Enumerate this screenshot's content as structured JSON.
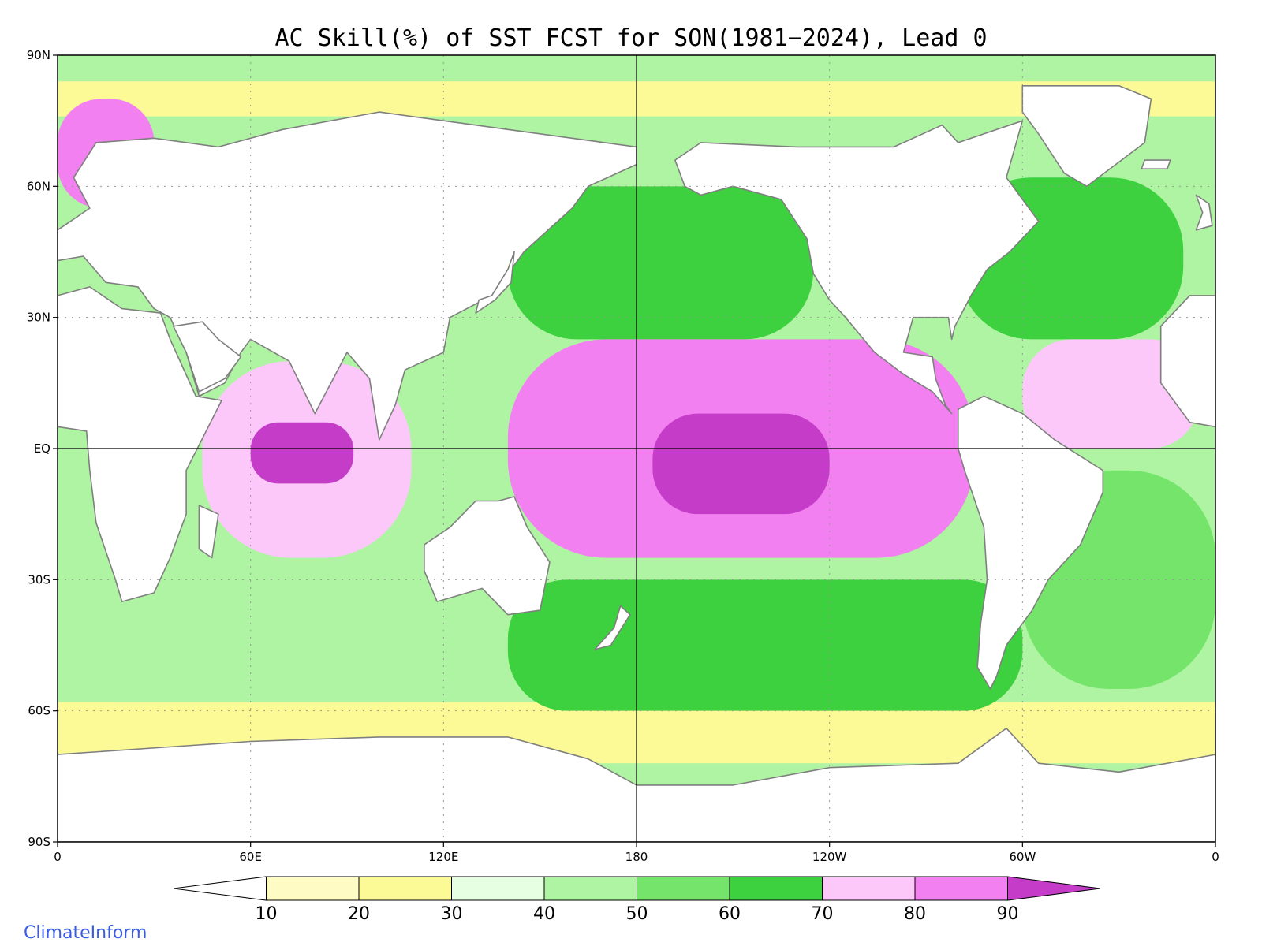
{
  "title": "AC Skill(%) of SST FCST for SON(1981−2024), Lead 0",
  "credit": "ClimateInform",
  "map": {
    "projection": "equirectangular",
    "lon_range": [
      0,
      360
    ],
    "lat_range": [
      -90,
      90
    ],
    "gridlines": "dotted",
    "reference_lines": [
      "Equator",
      "180"
    ],
    "land_fill": "#ffffff",
    "coastline_color": "#7f7f7f",
    "y_ticks": [
      {
        "lat": 90,
        "label": "90N"
      },
      {
        "lat": 60,
        "label": "60N"
      },
      {
        "lat": 30,
        "label": "30N"
      },
      {
        "lat": 0,
        "label": "EQ"
      },
      {
        "lat": -30,
        "label": "30S"
      },
      {
        "lat": -60,
        "label": "60S"
      },
      {
        "lat": -90,
        "label": "90S"
      }
    ],
    "x_ticks": [
      {
        "lon": 0,
        "label": "0"
      },
      {
        "lon": 60,
        "label": "60E"
      },
      {
        "lon": 120,
        "label": "120E"
      },
      {
        "lon": 180,
        "label": "180"
      },
      {
        "lon": 240,
        "label": "120W"
      },
      {
        "lon": 300,
        "label": "60W"
      },
      {
        "lon": 360,
        "label": "0"
      }
    ]
  },
  "legend": {
    "ticks": [
      "10",
      "20",
      "30",
      "40",
      "50",
      "60",
      "70",
      "80",
      "90"
    ],
    "under_color": "#ffffff",
    "over_color": "#c43cc8",
    "bins": [
      {
        "range": [
          10,
          20
        ],
        "color": "#fffbc4"
      },
      {
        "range": [
          20,
          30
        ],
        "color": "#fcfa96"
      },
      {
        "range": [
          30,
          40
        ],
        "color": "#e6ffe2"
      },
      {
        "range": [
          40,
          50
        ],
        "color": "#aef4a2"
      },
      {
        "range": [
          50,
          60
        ],
        "color": "#74e56a"
      },
      {
        "range": [
          60,
          70
        ],
        "color": "#3dd03f"
      },
      {
        "range": [
          70,
          80
        ],
        "color": "#fcc8fa"
      },
      {
        "range": [
          80,
          90
        ],
        "color": "#f280f0"
      }
    ]
  },
  "skill_regions": [
    {
      "name": "arctic-yellow-band",
      "lon": [
        0,
        360
      ],
      "lat": [
        76,
        84
      ],
      "value": 25
    },
    {
      "name": "southern-ocean-band",
      "lon": [
        0,
        360
      ],
      "lat": [
        -72,
        -58
      ],
      "value": 25
    },
    {
      "name": "south-indian-midlat",
      "lon": [
        0,
        120
      ],
      "lat": [
        -58,
        -30
      ],
      "value": 45
    },
    {
      "name": "south-pacific-midlat",
      "lon": [
        140,
        300
      ],
      "lat": [
        -60,
        -30
      ],
      "value": 62
    },
    {
      "name": "south-atlantic",
      "lon": [
        300,
        360
      ],
      "lat": [
        -55,
        -5
      ],
      "value": 58
    },
    {
      "name": "north-pacific",
      "lon": [
        140,
        235
      ],
      "lat": [
        25,
        60
      ],
      "value": 65
    },
    {
      "name": "north-atlantic",
      "lon": [
        280,
        350
      ],
      "lat": [
        25,
        62
      ],
      "value": 63
    },
    {
      "name": "tropical-pacific",
      "lon": [
        140,
        285
      ],
      "lat": [
        -25,
        25
      ],
      "value": 80
    },
    {
      "name": "tropical-indian",
      "lon": [
        45,
        110
      ],
      "lat": [
        -25,
        20
      ],
      "value": 78
    },
    {
      "name": "tropical-atlantic",
      "lon": [
        300,
        355
      ],
      "lat": [
        0,
        25
      ],
      "value": 78
    },
    {
      "name": "equatorial-pacific-core",
      "lon": [
        185,
        240
      ],
      "lat": [
        -15,
        8
      ],
      "value": 92
    },
    {
      "name": "indian-ocean-core",
      "lon": [
        60,
        92
      ],
      "lat": [
        -8,
        6
      ],
      "value": 92
    },
    {
      "name": "norwegian-sea",
      "lon": [
        0,
        30
      ],
      "lat": [
        55,
        80
      ],
      "value": 80
    },
    {
      "name": "gulf-of-alaska",
      "lon": [
        195,
        225
      ],
      "lat": [
        45,
        60
      ],
      "value": 68
    }
  ]
}
